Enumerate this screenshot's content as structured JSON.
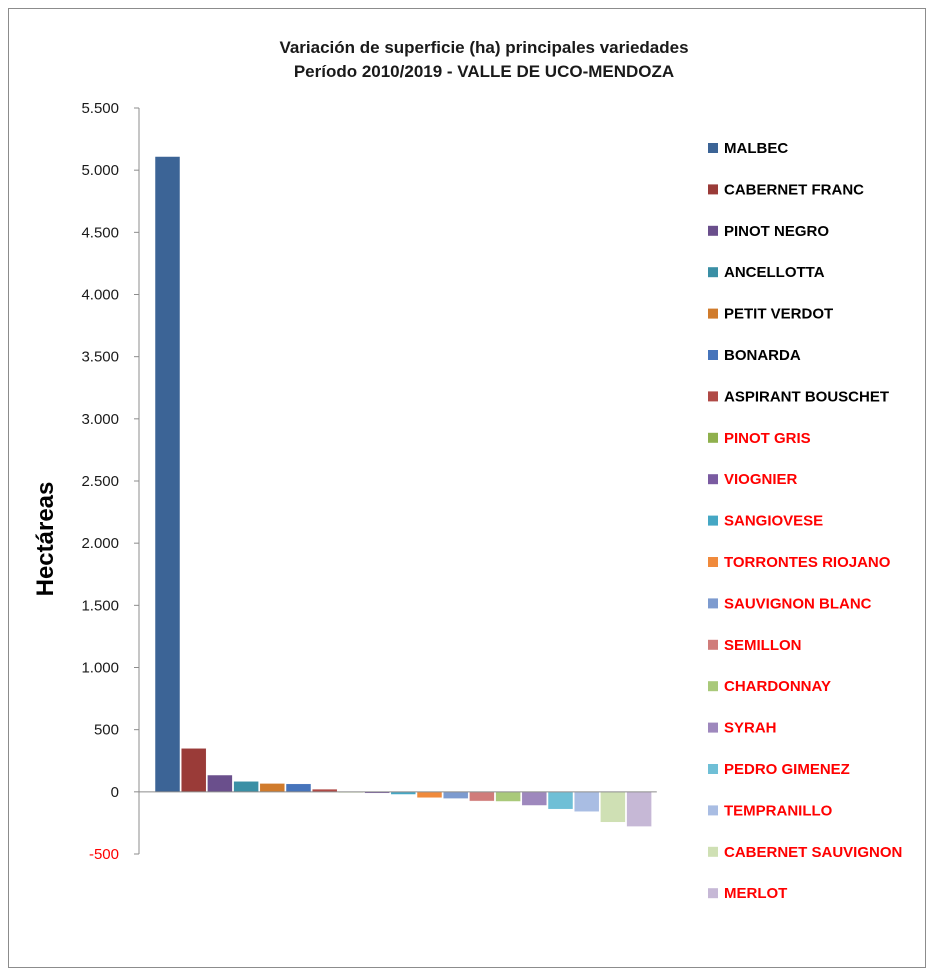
{
  "chart_data": {
    "type": "bar",
    "title_line1": "Variación de superficie (ha) principales variedades",
    "title_line2": "Período 2010/2019 - VALLE DE UCO-MENDOZA",
    "xlabel": "",
    "ylabel": "Hectáreas",
    "ylim": [
      -500,
      5500
    ],
    "y_ticks": [
      {
        "value": 5500,
        "label": "5.500"
      },
      {
        "value": 5000,
        "label": "5.000"
      },
      {
        "value": 4500,
        "label": "4.500"
      },
      {
        "value": 4000,
        "label": "4.000"
      },
      {
        "value": 3500,
        "label": "3.500"
      },
      {
        "value": 3000,
        "label": "3.000"
      },
      {
        "value": 2500,
        "label": "2.500"
      },
      {
        "value": 2000,
        "label": "2.000"
      },
      {
        "value": 1500,
        "label": "1.500"
      },
      {
        "value": 1000,
        "label": "1.000"
      },
      {
        "value": 500,
        "label": "500"
      },
      {
        "value": 0,
        "label": "0"
      },
      {
        "value": -500,
        "label": "-500"
      }
    ],
    "negative_tick_color": "#ff0000",
    "positive_label_color": "#000000",
    "negative_label_color": "#ff0000",
    "grid": false,
    "legend_position": "right",
    "series": [
      {
        "name": "MALBEC",
        "value": 5110,
        "color": "#3c6496"
      },
      {
        "name": "CABERNET FRANC",
        "value": 350,
        "color": "#9a3b38"
      },
      {
        "name": "PINOT NEGRO",
        "value": 135,
        "color": "#6a4f8c"
      },
      {
        "name": "ANCELLOTTA",
        "value": 85,
        "color": "#3a8fa5"
      },
      {
        "name": "PETIT VERDOT",
        "value": 68,
        "color": "#d07b2c"
      },
      {
        "name": "BONARDA",
        "value": 65,
        "color": "#4674bb"
      },
      {
        "name": "ASPIRANT BOUSCHET",
        "value": 22,
        "color": "#b04a46"
      },
      {
        "name": "PINOT GRIS",
        "value": -5,
        "color": "#8fb04d"
      },
      {
        "name": "VIOGNIER",
        "value": -12,
        "color": "#7a5ba1"
      },
      {
        "name": "SANGIOVESE",
        "value": -22,
        "color": "#45a7c4"
      },
      {
        "name": "TORRONTES RIOJANO",
        "value": -48,
        "color": "#f08a3c"
      },
      {
        "name": "SAUVIGNON BLANC",
        "value": -55,
        "color": "#7d9bcf"
      },
      {
        "name": "SEMILLON",
        "value": -75,
        "color": "#d07c7a"
      },
      {
        "name": "CHARDONNAY",
        "value": -78,
        "color": "#a9c97a"
      },
      {
        "name": "SYRAH",
        "value": -110,
        "color": "#9e88bd"
      },
      {
        "name": "PEDRO GIMENEZ",
        "value": -140,
        "color": "#6fbfd6"
      },
      {
        "name": "TEMPRANILLO",
        "value": -160,
        "color": "#a9bde3"
      },
      {
        "name": "CABERNET SAUVIGNON",
        "value": -245,
        "color": "#cfe0b4"
      },
      {
        "name": "MERLOT",
        "value": -280,
        "color": "#c6b8d6"
      }
    ]
  }
}
